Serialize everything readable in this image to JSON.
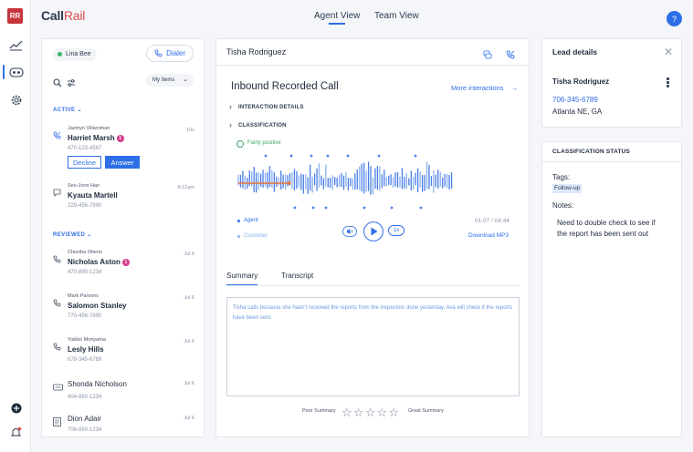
{
  "app": {
    "logo_call": "Call",
    "logo_rail": "Rail",
    "avatar_initials": "RR",
    "help_label": "?"
  },
  "topnav": [
    {
      "label": "Agent View",
      "active": true
    },
    {
      "label": "Team View",
      "active": false
    }
  ],
  "sidebar_icons": [
    "analytics-icon",
    "calls-icon",
    "settings-icon",
    "add-icon",
    "notifications-icon"
  ],
  "list_panel": {
    "agent_status": "Lina Bee",
    "dialer_label": "Dialer",
    "filter_label": "My Items",
    "sections": {
      "active": "ACTIVE",
      "reviewed": "REVIEWED"
    },
    "active_items": [
      {
        "agent": "Jazmyn Villaroman",
        "time": "10s",
        "name": "Harriet Marsh",
        "badge": "1",
        "number": "470-123-4567",
        "decline": "Decline",
        "answer": "Answer",
        "icon": "incoming-call-icon"
      },
      {
        "agent": "Seo-Joon Han",
        "time": "8:12am",
        "name": "Kyauta Martell",
        "number": "229-456-7890",
        "icon": "text-message-icon"
      }
    ],
    "reviewed_items": [
      {
        "agent": "Chizoba Otieno",
        "time": "Jul 6",
        "name": "Nicholas Aston",
        "badge": "1",
        "number": "470-890-1234",
        "icon": "incoming-call-icon"
      },
      {
        "agent": "Mark Parsons",
        "time": "Jul 6",
        "name": "Salomon Stanley",
        "number": "770-456-7890",
        "icon": "incoming-call-icon"
      },
      {
        "agent": "Yukiko Moriyama",
        "time": "Jul 6",
        "name": "Lesly Hills",
        "number": "678-345-6789",
        "icon": "incoming-call-icon"
      },
      {
        "agent": "",
        "time": "Jul 6",
        "name": "Shonda Nicholson",
        "number": "404-890-1234",
        "icon": "chat-icon"
      },
      {
        "agent": "",
        "time": "Jul 6",
        "name": "Dion Adair",
        "number": "706-890-1234",
        "icon": "form-icon"
      }
    ]
  },
  "center": {
    "contact_name": "Tisha Rodriguez",
    "title": "Inbound Recorded Call",
    "more_interactions": "More interactions",
    "interaction_details": "INTERACTION DETAILS",
    "classification": "CLASSIFICATION",
    "sentiment": "Fairly positive",
    "legend_agent": "Agent",
    "legend_customer": "Customer",
    "timecode": "01:07 / 04:44",
    "speed": "1x",
    "download": "Download MP3",
    "tabs": [
      "Summary",
      "Transcript"
    ],
    "summary_text": "Tisha calls because she hasn't received the reports from the inspection done yesterday. Ava will check if the reports have been sent.",
    "rating_low": "Poor Summary",
    "rating_high": "Great Summary",
    "rating_stars": 5,
    "playback_progress": 0.236,
    "colors": {
      "accent": "#2d6ee6",
      "progress": "#e8743b",
      "wave": "#4a7fe8"
    }
  },
  "lead": {
    "header": "Lead details",
    "name": "Tisha Rodriguez",
    "phone": "706-345-6789",
    "location": "Atlanta NE, GA"
  },
  "classification_status": {
    "header": "CLASSIFICATION STATUS",
    "tags_label": "Tags:",
    "tag": "Follow-up",
    "notes_label": "Notes:",
    "note": "Need to double check to see if the report has been sent out"
  }
}
